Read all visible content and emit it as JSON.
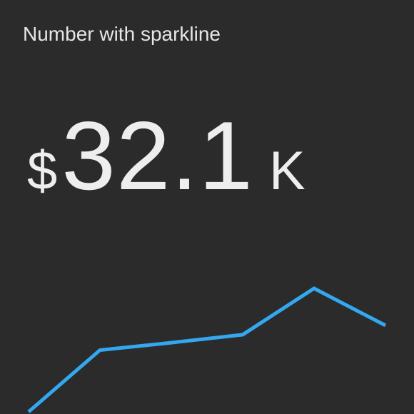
{
  "panel": {
    "title": "Number with sparkline"
  },
  "stat": {
    "prefix": "$",
    "value": "32.1",
    "suffix": "K"
  },
  "colors": {
    "background": "#2b2b2b",
    "text": "#eeeeee",
    "sparkline": "#33a8f0"
  },
  "chart_data": {
    "type": "line",
    "x": [
      1,
      2,
      3,
      4,
      5,
      6
    ],
    "series": [
      {
        "values": [
          0,
          1,
          1.12,
          1.25,
          2,
          1.4
        ]
      }
    ],
    "ylim": [
      0,
      2
    ],
    "grid": false
  }
}
